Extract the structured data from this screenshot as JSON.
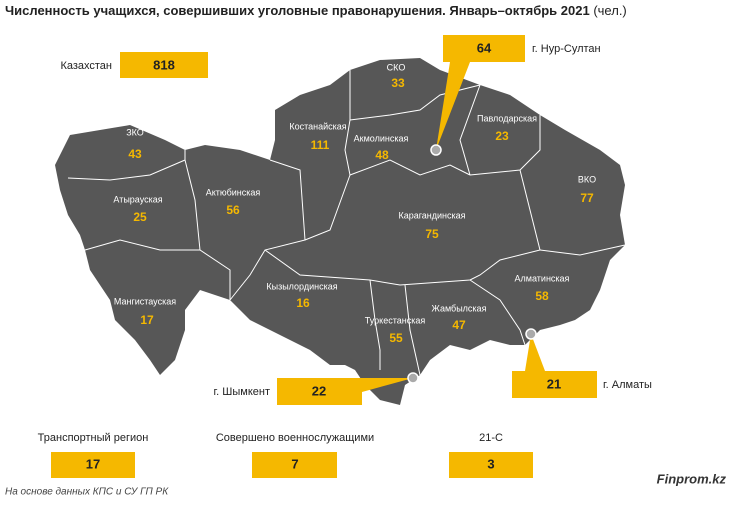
{
  "title": "Численность учащихся, совершивших уголовные правонарушения. Январь–октябрь 2021",
  "unit": "(чел.)",
  "total": {
    "label": "Казахстан",
    "value": "818"
  },
  "regions": [
    {
      "name": "ЗКО",
      "value": "43"
    },
    {
      "name": "Атырауская",
      "value": "25"
    },
    {
      "name": "Актюбинская",
      "value": "56"
    },
    {
      "name": "Мангистауская",
      "value": "17"
    },
    {
      "name": "Костанайская",
      "value": "111"
    },
    {
      "name": "СКО",
      "value": "33"
    },
    {
      "name": "Акмолинская",
      "value": "48"
    },
    {
      "name": "Павлодарская",
      "value": "23"
    },
    {
      "name": "ВКО",
      "value": "77"
    },
    {
      "name": "Карагандинская",
      "value": "75"
    },
    {
      "name": "Кызылординская",
      "value": "16"
    },
    {
      "name": "Туркестанская",
      "value": "55"
    },
    {
      "name": "Жамбылская",
      "value": "47"
    },
    {
      "name": "Алматинская",
      "value": "58"
    }
  ],
  "cities": [
    {
      "name": "г. Нур-Султан",
      "value": "64"
    },
    {
      "name": "г. Шымкент",
      "value": "22"
    },
    {
      "name": "г. Алматы",
      "value": "21"
    }
  ],
  "extra": [
    {
      "label": "Транспортный регион",
      "value": "17"
    },
    {
      "label": "Совершено военнослужащими",
      "value": "7"
    },
    {
      "label": "21-С",
      "value": "3"
    }
  ],
  "source": "На основе данных КПС и СУ ГП РК",
  "brand": "Finprom.kz"
}
